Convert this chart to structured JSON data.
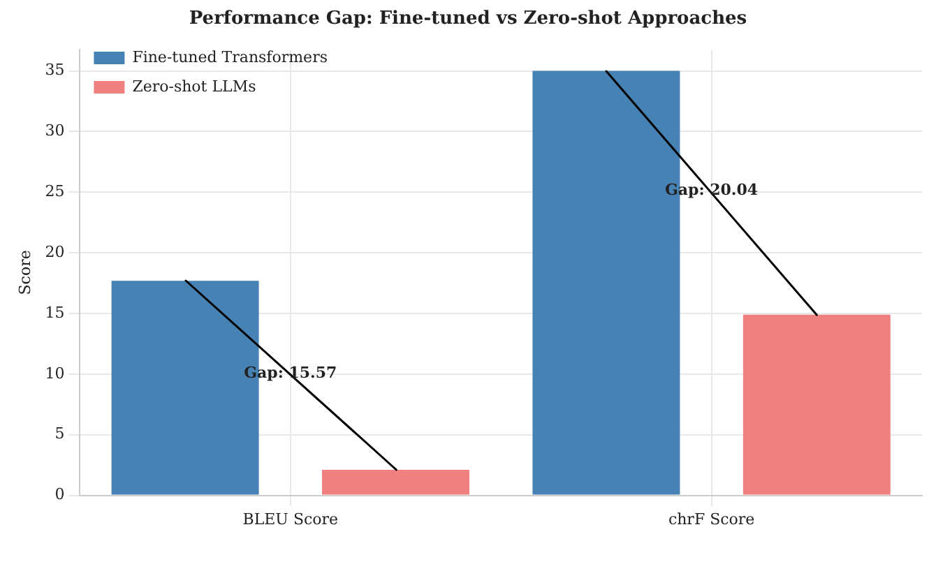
{
  "chart_data": {
    "type": "bar",
    "title": "Performance Gap: Fine-tuned vs Zero-shot Approaches",
    "ylabel": "Score",
    "categories": [
      "BLEU Score",
      "chrF Score"
    ],
    "series": [
      {
        "name": "Fine-tuned Transformers",
        "color": "#4682b4",
        "values": [
          17.7,
          35.0
        ]
      },
      {
        "name": "Zero-shot LLMs",
        "color": "#f08080",
        "values": [
          2.1,
          14.9
        ]
      }
    ],
    "ylim": [
      0,
      36.75
    ],
    "yticks": [
      0,
      5,
      10,
      15,
      20,
      25,
      30,
      35
    ],
    "grid": true,
    "legend": "top left",
    "annotations": [
      "Gap: 15.57",
      "Gap: 20.04"
    ]
  }
}
